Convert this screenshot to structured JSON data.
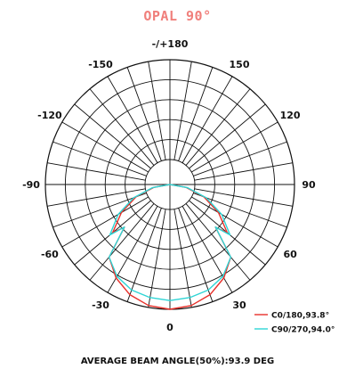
{
  "chart_data": {
    "type": "polar",
    "title": "OPAL 90°",
    "angle_ticks": [
      "-/+180",
      "150",
      "120",
      "90",
      "60",
      "30",
      "0",
      "-30",
      "-60",
      "-90",
      "-120",
      "-150"
    ],
    "grid": true,
    "series": [
      {
        "name": "C0/180,93.8°",
        "color": "#e8302a",
        "curve": [
          {
            "angle": 0,
            "value": 1.0
          },
          {
            "angle": 10,
            "value": 0.985
          },
          {
            "angle": 20,
            "value": 0.94
          },
          {
            "angle": 30,
            "value": 0.865
          },
          {
            "angle": 40,
            "value": 0.76
          },
          {
            "angle": 46.9,
            "value": 0.5
          },
          {
            "angle": 50,
            "value": 0.6
          },
          {
            "angle": 60,
            "value": 0.45
          },
          {
            "angle": 70,
            "value": 0.29
          },
          {
            "angle": 80,
            "value": 0.13
          },
          {
            "angle": 90,
            "value": 0.0
          }
        ]
      },
      {
        "name": "C90/270,94.0°",
        "color": "#2fd5d5",
        "curve": [
          {
            "angle": 0,
            "value": 0.93
          },
          {
            "angle": 10,
            "value": 0.92
          },
          {
            "angle": 20,
            "value": 0.9
          },
          {
            "angle": 30,
            "value": 0.85
          },
          {
            "angle": 40,
            "value": 0.76
          },
          {
            "angle": 47.0,
            "value": 0.5
          },
          {
            "angle": 50,
            "value": 0.63
          },
          {
            "angle": 60,
            "value": 0.48
          },
          {
            "angle": 70,
            "value": 0.31
          },
          {
            "angle": 80,
            "value": 0.14
          },
          {
            "angle": 90,
            "value": 0.0
          }
        ]
      }
    ],
    "legend_placement": "bottom-right"
  },
  "footer": "AVERAGE BEAM ANGLE(50%):93.9 DEG"
}
